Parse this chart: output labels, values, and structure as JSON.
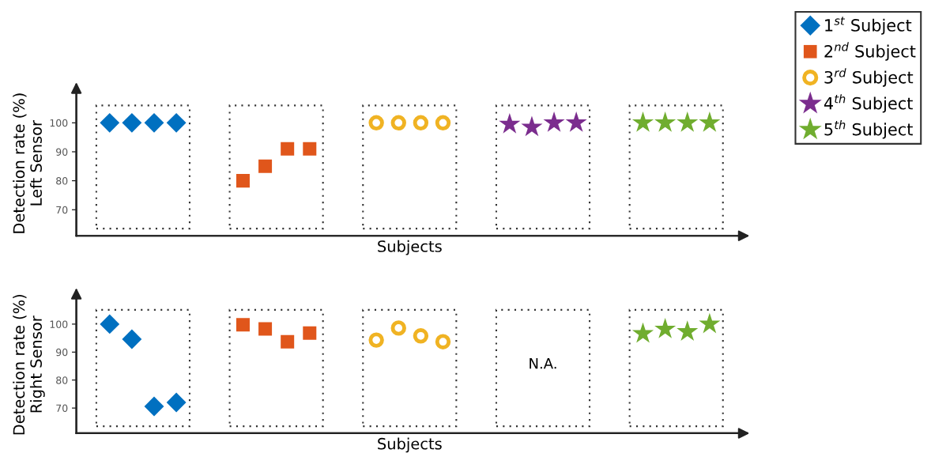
{
  "chart_data": [
    {
      "type": "scatter",
      "xlabel": "Subjects",
      "ylabel": "Detection rate (%)\nLeft Sensor",
      "ylim": [
        61,
        111
      ],
      "yticks": [
        70,
        80,
        90,
        100
      ],
      "grid": false,
      "legend": "top right",
      "tick_labels": "y",
      "categories": [
        null,
        null,
        null,
        null,
        null,
        null,
        null,
        null,
        null,
        null,
        null,
        null,
        null,
        null,
        null,
        null,
        null,
        null,
        null,
        null,
        null,
        null,
        null,
        null,
        null,
        null,
        null,
        null,
        null,
        null
      ],
      "series": [
        {
          "name": "1$^{st}$ Subject",
          "color": "#0070c0",
          "marker": "diamond",
          "values": [
            null,
            100,
            100,
            100,
            100,
            null,
            null,
            null,
            null,
            null,
            null,
            null,
            null,
            null,
            null,
            null,
            null,
            null,
            null,
            null,
            null,
            null,
            null,
            null,
            null,
            null,
            null,
            null,
            null,
            null
          ]
        },
        {
          "name": "2$^{nd}$ Subject",
          "color": "#e0561b",
          "marker": "square",
          "values": [
            null,
            null,
            null,
            null,
            null,
            null,
            null,
            80,
            85,
            91,
            91,
            null,
            null,
            null,
            null,
            null,
            null,
            null,
            null,
            null,
            null,
            null,
            null,
            null,
            null,
            null,
            null,
            null,
            null,
            null
          ]
        },
        {
          "name": "3$^{rd}$ Subject",
          "color": "#f0b323",
          "marker": "circle",
          "values": [
            null,
            null,
            null,
            null,
            null,
            null,
            null,
            null,
            null,
            null,
            null,
            null,
            null,
            100,
            100,
            100,
            100,
            null,
            null,
            null,
            null,
            null,
            null,
            null,
            null,
            null,
            null,
            null,
            null,
            null
          ]
        },
        {
          "name": "4$^{th}$ Subject",
          "color": "#7b2d8e",
          "marker": "star",
          "values": [
            null,
            null,
            null,
            null,
            null,
            null,
            null,
            null,
            null,
            null,
            null,
            null,
            null,
            null,
            null,
            null,
            null,
            null,
            null,
            99.5,
            98.5,
            100,
            100,
            null,
            null,
            null,
            null,
            null,
            null,
            null
          ]
        },
        {
          "name": "5$^{th}$ Subject",
          "color": "#70ad2f",
          "marker": "star",
          "values": [
            null,
            null,
            null,
            null,
            null,
            null,
            null,
            null,
            null,
            null,
            null,
            null,
            null,
            null,
            null,
            null,
            null,
            null,
            null,
            null,
            null,
            null,
            null,
            null,
            null,
            100,
            100,
            100,
            100,
            null
          ]
        }
      ]
    },
    {
      "type": "scatter",
      "xlabel": "Subjects",
      "ylabel": "Detection rate (%)\nRight Sensor",
      "ylim": [
        61,
        110
      ],
      "yticks": [
        70,
        80,
        90,
        100
      ],
      "grid": false,
      "tick_labels": "y",
      "annotations": [
        "N.A."
      ],
      "categories": [
        null,
        null,
        null,
        null,
        null,
        null,
        null,
        null,
        null,
        null,
        null,
        null,
        null,
        null,
        null,
        null,
        null,
        null,
        null,
        null,
        null,
        null,
        null,
        null,
        null,
        null,
        null,
        null,
        null,
        null
      ],
      "series": [
        {
          "color": "#0070c0",
          "marker": "diamond",
          "values": [
            null,
            100,
            94.6,
            70.6,
            72,
            null,
            null,
            null,
            null,
            null,
            null,
            null,
            null,
            null,
            null,
            null,
            null,
            null,
            null,
            null,
            null,
            null,
            null,
            null,
            null,
            null,
            null,
            null,
            null,
            null
          ]
        },
        {
          "color": "#e0561b",
          "marker": "square",
          "values": [
            null,
            null,
            null,
            null,
            null,
            null,
            null,
            99.8,
            98.3,
            93.7,
            96.8,
            null,
            null,
            null,
            null,
            null,
            null,
            null,
            null,
            null,
            null,
            null,
            null,
            null,
            null,
            null,
            null,
            null,
            null,
            null
          ]
        },
        {
          "color": "#f0b323",
          "marker": "circle",
          "values": [
            null,
            null,
            null,
            null,
            null,
            null,
            null,
            null,
            null,
            null,
            null,
            null,
            null,
            94.3,
            98.6,
            95.8,
            93.7,
            null,
            null,
            null,
            null,
            null,
            null,
            null,
            null,
            null,
            null,
            null,
            null,
            null
          ]
        },
        {
          "values": [
            null,
            null,
            null,
            null,
            null,
            null,
            null,
            null,
            null,
            null,
            null,
            null,
            null,
            null,
            null,
            null,
            null,
            null,
            null,
            null,
            null,
            null,
            null,
            null,
            null,
            null,
            null,
            null,
            null,
            null
          ]
        },
        {
          "color": "#70ad2f",
          "marker": "star",
          "values": [
            null,
            null,
            null,
            null,
            null,
            null,
            null,
            null,
            null,
            null,
            null,
            null,
            null,
            null,
            null,
            null,
            null,
            null,
            null,
            null,
            null,
            null,
            null,
            null,
            null,
            96.6,
            98.2,
            97.3,
            100,
            null
          ]
        }
      ]
    }
  ]
}
